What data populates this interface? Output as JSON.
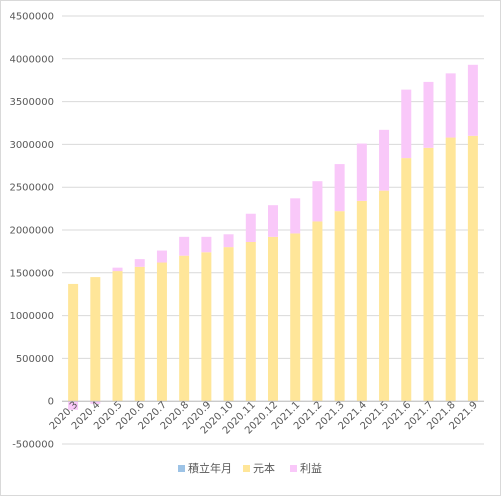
{
  "chart_data": {
    "type": "bar",
    "stacked": true,
    "categories": [
      "2020.3",
      "2020.4",
      "2020.5",
      "2020.6",
      "2020.7",
      "2020.8",
      "2020.9",
      "2020.10",
      "2020.11",
      "2020.12",
      "2021.1",
      "2021.2",
      "2021.3",
      "2021.4",
      "2021.5",
      "2021.6",
      "2021.7",
      "2021.8",
      "2021.9"
    ],
    "series": [
      {
        "name": "積立年月",
        "color": "#9dc3e6",
        "values": [
          0,
          0,
          0,
          0,
          0,
          0,
          0,
          0,
          0,
          0,
          0,
          0,
          0,
          0,
          0,
          0,
          0,
          0,
          0
        ]
      },
      {
        "name": "元本",
        "color": "#ffe699",
        "values": [
          1370000,
          1450000,
          1520000,
          1570000,
          1620000,
          1700000,
          1740000,
          1800000,
          1860000,
          1920000,
          1960000,
          2100000,
          2220000,
          2340000,
          2460000,
          2840000,
          2960000,
          3080000,
          3100000
        ]
      },
      {
        "name": "利益",
        "color": "#f9c8f9",
        "values": [
          -100000,
          -30000,
          40000,
          90000,
          140000,
          220000,
          180000,
          150000,
          330000,
          370000,
          410000,
          470000,
          550000,
          670000,
          710000,
          800000,
          770000,
          750000,
          830000
        ]
      }
    ],
    "yticks": [
      "4500000",
      "4000000",
      "3500000",
      "3000000",
      "2500000",
      "2000000",
      "1500000",
      "1000000",
      "500000",
      "0",
      "-500000"
    ],
    "ylim": [
      -500000,
      4500000
    ],
    "grid": true,
    "legend": "bottom",
    "title": "",
    "xlabel": "",
    "ylabel": ""
  }
}
